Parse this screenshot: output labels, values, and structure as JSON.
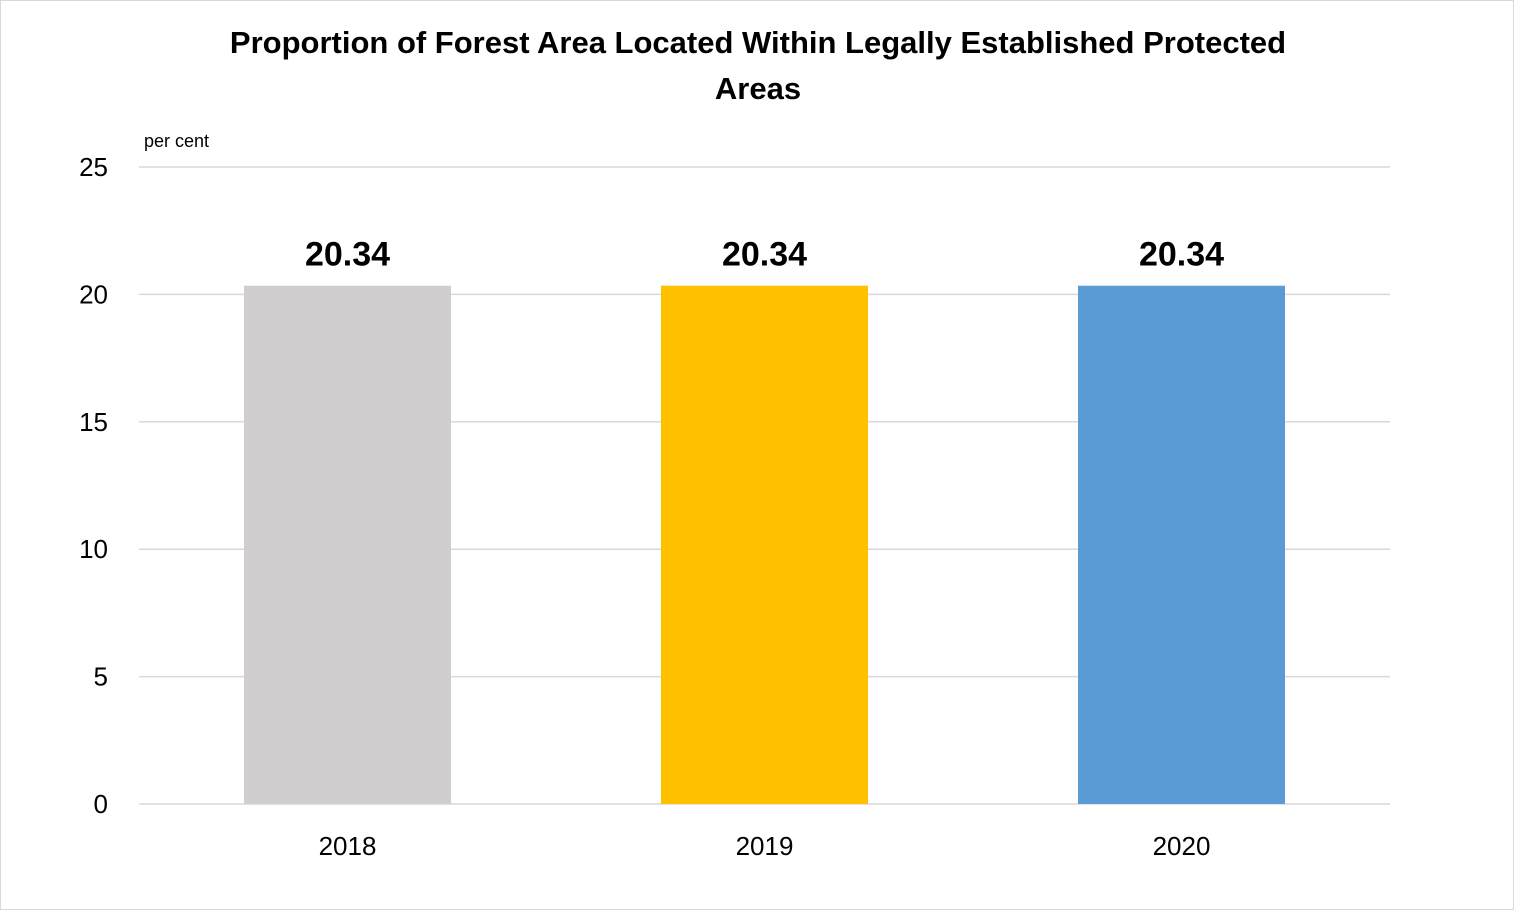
{
  "chart_data": {
    "type": "bar",
    "title_line1": "Proportion of Forest Area Located Within Legally Established Protected",
    "title_line2": "Areas",
    "unit_label": "per cent",
    "categories": [
      "2018",
      "2019",
      "2020"
    ],
    "values": [
      20.34,
      20.34,
      20.34
    ],
    "data_labels": [
      "20.34",
      "20.34",
      "20.34"
    ],
    "colors": [
      "#d0cece",
      "#ffc000",
      "#5b9bd5"
    ],
    "ylim": [
      0,
      25
    ],
    "yticks": [
      0,
      5,
      10,
      15,
      20,
      25
    ],
    "ytick_labels": [
      "0",
      "5",
      "10",
      "15",
      "20",
      "25"
    ],
    "grid": true,
    "legend": "none"
  }
}
